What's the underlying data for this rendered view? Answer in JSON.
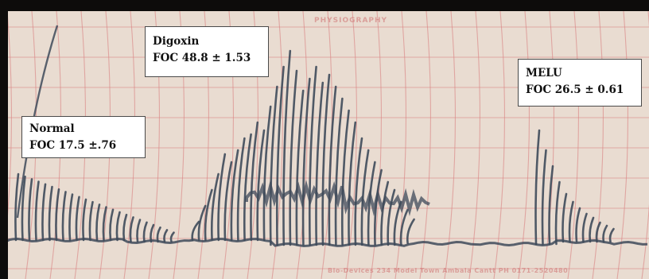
{
  "paper": {
    "header_print": "PHYSIOGRAPHY",
    "footer_print": "Bio-Devices 234 Model Town Ambala Cantt PH 0171-2520480"
  },
  "labels": {
    "normal": {
      "name": "Normal",
      "foc": "FOC 17.5 ±.76"
    },
    "digoxin": {
      "name": "Digoxin",
      "foc": "FOC 48.8 ± 1.53"
    },
    "melu": {
      "name": "MELU",
      "foc": "FOC 26.5 ± 0.61"
    }
  },
  "colors": {
    "paper": "#e9dcd1",
    "grid": "#d98080",
    "trace": "#3e4a5a",
    "frame": "#0d0c0b"
  }
}
